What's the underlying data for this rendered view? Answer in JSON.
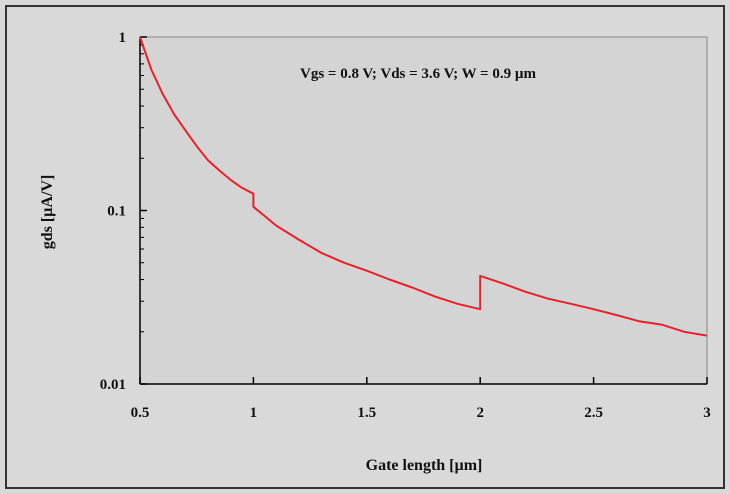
{
  "chart_data": {
    "type": "line",
    "title": "",
    "annotation": "Vgs = 0.8 V; Vds = 3.6 V; W = 0.9 µm",
    "xlabel": "Gate length [µm]",
    "ylabel": "gds [µA/V]",
    "xlim": [
      0.5,
      3
    ],
    "ylim": [
      0.01,
      1
    ],
    "yscale": "log",
    "grid": false,
    "legend": "none",
    "x_ticks": [
      "0.5",
      "1",
      "1.5",
      "2",
      "2.5",
      "3"
    ],
    "y_ticks": [
      "0.01",
      "0.1",
      "1"
    ],
    "series": [
      {
        "color": "#e8202a",
        "x": [
          0.5,
          0.55,
          0.6,
          0.65,
          0.7,
          0.75,
          0.8,
          0.85,
          0.9,
          0.95,
          1.0,
          1.0,
          1.05,
          1.1,
          1.2,
          1.3,
          1.4,
          1.5,
          1.6,
          1.7,
          1.8,
          1.9,
          2.0,
          2.0,
          2.1,
          2.2,
          2.3,
          2.4,
          2.5,
          2.6,
          2.7,
          2.8,
          2.9,
          3.0
        ],
        "y": [
          1.0,
          0.65,
          0.47,
          0.36,
          0.29,
          0.235,
          0.195,
          0.17,
          0.15,
          0.135,
          0.125,
          0.105,
          0.093,
          0.082,
          0.068,
          0.057,
          0.05,
          0.045,
          0.04,
          0.036,
          0.032,
          0.029,
          0.027,
          0.042,
          0.038,
          0.034,
          0.031,
          0.029,
          0.027,
          0.025,
          0.023,
          0.022,
          0.02,
          0.019
        ]
      }
    ]
  }
}
